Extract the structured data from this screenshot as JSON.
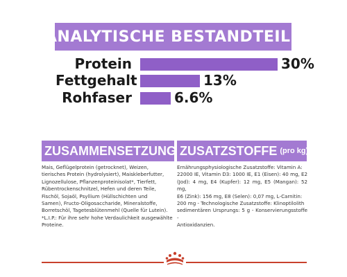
{
  "header": {
    "title": "ANALYTISCHE BESTANDTEILE"
  },
  "chart_data": {
    "type": "bar",
    "categories": [
      "Protein",
      "Fettgehalt",
      "Rohfaser"
    ],
    "values": [
      30,
      13,
      6.6
    ],
    "value_labels": [
      "30%",
      "13%",
      "6.6%"
    ],
    "unit": "%"
  },
  "composition": {
    "title": "ZUSAMMENSETZUNG",
    "lines": [
      "Mais, Geflügelprotein (getrocknet), Weizen,",
      "tierisches Protein (hydrolysiert), Maiskleberfutter,",
      "Lignozellulose, Pflanzenproteinisolat*, Tierfett,",
      "Rübentrockenschnitzel, Hefen und deren Teile,",
      "Fischöl, Sojaöl, Psyllium (Hüllschichten und",
      "Samen), Fructo-Oligosaccharide, Mineralstoffe,",
      "Borretschöl, Tagetesblütenmehl (Quelle für Lutein).",
      "*L.I.P.: Für ihre sehr hohe Verdaulichkeit ausgewählte",
      "Proteine."
    ]
  },
  "additives": {
    "title": "ZUSATZSTOFFE",
    "subtitle": "(pro kg)",
    "lines": [
      "Ernährungsphysiologische Zusatzstoffe: Vitamin A:",
      "22000 IE, Vitamin D3: 1000 IE, E1 (Eisen): 40 mg, E2",
      "(Jod): 4 mg, E4 (Kupfer): 12 mg, E5 (Mangan): 52 mg,",
      "E6 (Zink): 156 mg, E8 (Selen): 0,07 mg, L-Carnitin:",
      "200 mg - Technologische Zusatzstoffe: Klinoptilolith",
      "sedimentären Ursprungs: 5 g - Konservierungsstoffe -",
      "Antioxidanzien."
    ]
  },
  "colors": {
    "brand_purple": "#a37ad2",
    "bar_purple": "#8f5fc7",
    "brand_red": "#c8402c"
  },
  "logo": {
    "name": "royal-canin-crown"
  }
}
